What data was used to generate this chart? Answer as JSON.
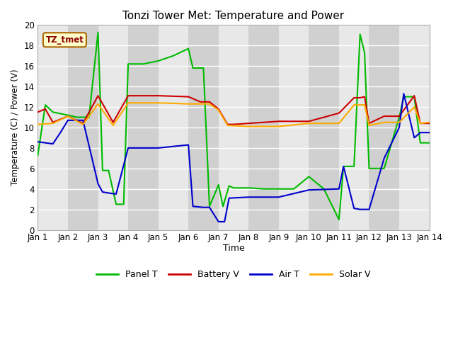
{
  "title": "Tonzi Tower Met: Temperature and Power",
  "xlabel": "Time",
  "ylabel": "Temperature (C) / Power (V)",
  "annotation": "TZ_tmet",
  "ylim": [
    0,
    20
  ],
  "xlim": [
    0,
    13
  ],
  "x_tick_pos": [
    0,
    1,
    2,
    3,
    4,
    5,
    6,
    7,
    8,
    9,
    10,
    11,
    12,
    13
  ],
  "x_labels": [
    "Jan 1",
    "Jan 2",
    "Jan 3",
    "Jan 4",
    "Jan 5",
    "Jan 6",
    "Jan 7",
    "Jan 8",
    "Jan 9",
    "Jan 10",
    "Jan 11",
    "Jan 12",
    "Jan 13",
    "Jan 14"
  ],
  "y_ticks": [
    0,
    2,
    4,
    6,
    8,
    10,
    12,
    14,
    16,
    18,
    20
  ],
  "alt_band_color1": "#e8e8e8",
  "alt_band_color2": "#d0d0d0",
  "grid_color": "#ffffff",
  "series": {
    "Panel T": {
      "color": "#00bb00",
      "x": [
        0,
        0.25,
        0.5,
        1.0,
        1.3,
        1.7,
        2.0,
        2.15,
        2.35,
        2.6,
        2.85,
        3.0,
        3.5,
        4.0,
        4.5,
        5.0,
        5.15,
        5.5,
        5.7,
        6.0,
        6.15,
        6.35,
        6.5,
        7.0,
        7.5,
        8.0,
        8.5,
        9.0,
        9.5,
        10.0,
        10.15,
        10.5,
        10.7,
        10.85,
        11.0,
        11.5,
        12.0,
        12.15,
        12.5,
        12.7,
        13.0
      ],
      "y": [
        7.3,
        12.2,
        11.5,
        11.2,
        11.0,
        11.0,
        19.3,
        5.8,
        5.8,
        2.5,
        2.5,
        16.2,
        16.2,
        16.5,
        17.0,
        17.7,
        15.8,
        15.8,
        2.3,
        4.4,
        2.3,
        4.3,
        4.1,
        4.1,
        4.0,
        4.0,
        4.0,
        5.2,
        4.0,
        1.0,
        6.2,
        6.2,
        19.1,
        17.3,
        6.0,
        6.0,
        11.0,
        13.0,
        13.0,
        8.5,
        8.5
      ]
    },
    "Battery V": {
      "color": "#cc0000",
      "x": [
        0,
        0.25,
        0.5,
        0.75,
        1.0,
        1.5,
        2.0,
        2.5,
        3.0,
        4.0,
        5.0,
        5.4,
        5.7,
        6.0,
        6.3,
        6.5,
        7.0,
        8.0,
        9.0,
        10.0,
        10.5,
        10.7,
        10.85,
        11.0,
        11.5,
        12.0,
        12.5,
        12.7,
        13.0
      ],
      "y": [
        11.5,
        11.8,
        10.5,
        10.8,
        11.1,
        10.4,
        13.1,
        10.5,
        13.1,
        13.1,
        13.0,
        12.5,
        12.5,
        11.8,
        10.3,
        10.3,
        10.4,
        10.6,
        10.6,
        11.4,
        12.9,
        12.9,
        13.0,
        10.4,
        11.1,
        11.1,
        13.1,
        10.4,
        10.4
      ]
    },
    "Air T": {
      "color": "#0000cc",
      "x": [
        0,
        0.25,
        0.5,
        0.75,
        1.0,
        1.5,
        2.0,
        2.15,
        2.35,
        2.6,
        3.0,
        4.0,
        5.0,
        5.15,
        5.5,
        5.7,
        6.0,
        6.2,
        6.35,
        7.0,
        8.0,
        9.0,
        10.0,
        10.15,
        10.5,
        10.7,
        10.85,
        11.0,
        11.5,
        12.0,
        12.15,
        12.5,
        12.7,
        13.0
      ],
      "y": [
        8.6,
        8.5,
        8.4,
        9.5,
        10.7,
        10.7,
        4.5,
        3.7,
        3.6,
        3.5,
        8.0,
        8.0,
        8.3,
        2.3,
        2.2,
        2.2,
        0.8,
        0.8,
        3.1,
        3.2,
        3.2,
        3.9,
        4.0,
        6.2,
        2.1,
        2.0,
        2.0,
        2.0,
        7.0,
        10.0,
        13.3,
        9.0,
        9.5,
        9.5
      ]
    },
    "Solar V": {
      "color": "#ffaa00",
      "x": [
        0,
        0.5,
        1.0,
        1.5,
        2.0,
        2.5,
        3.0,
        4.0,
        5.0,
        5.4,
        5.7,
        6.0,
        6.3,
        7.0,
        8.0,
        9.0,
        10.0,
        10.5,
        10.7,
        10.85,
        11.0,
        11.5,
        12.0,
        12.5,
        12.7,
        13.0
      ],
      "y": [
        10.3,
        10.4,
        11.1,
        10.3,
        12.3,
        10.2,
        12.4,
        12.4,
        12.3,
        12.3,
        12.3,
        11.7,
        10.2,
        10.1,
        10.1,
        10.4,
        10.4,
        12.2,
        12.2,
        12.2,
        10.2,
        10.5,
        10.5,
        12.0,
        10.4,
        10.5
      ]
    }
  }
}
